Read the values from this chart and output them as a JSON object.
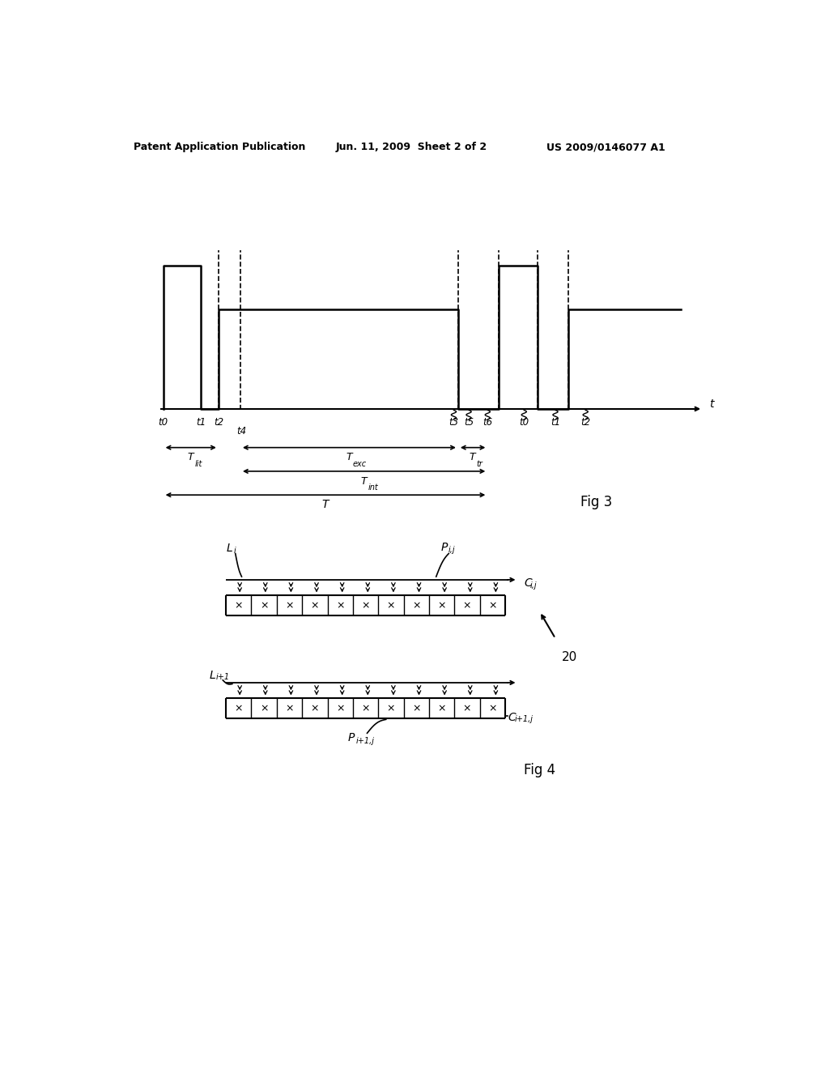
{
  "bg_color": "#ffffff",
  "header_left": "Patent Application Publication",
  "header_center": "Jun. 11, 2009  Sheet 2 of 2",
  "header_right": "US 2009/0146077 A1",
  "fig3_label": "Fig 3",
  "fig4_label": "Fig 4"
}
